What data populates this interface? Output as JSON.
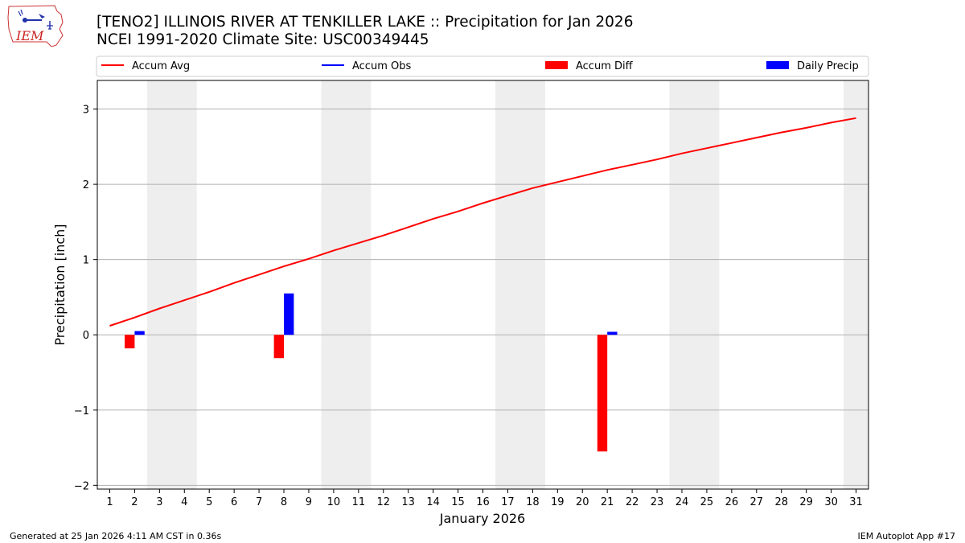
{
  "header": {
    "title_line1": "[TENO2] ILLINOIS RIVER  AT TENKILLER LAKE :: Precipitation for Jan 2026",
    "title_line2": "NCEI 1991-2020 Climate Site: USC00349445",
    "logo_text": "IEM"
  },
  "footer": {
    "generated": "Generated at 25 Jan 2026 4:11 AM CST in 0.36s",
    "app": "IEM Autoplot App #17"
  },
  "colors": {
    "accum_avg": "#ff0000",
    "accum_obs": "#0000ff",
    "accum_diff": "#ff0000",
    "daily_precip": "#0000ff",
    "weekend_shade": "#eeeeee",
    "grid": "#b0b0b0"
  },
  "chart_data": {
    "type": "bar",
    "title": "[TENO2] ILLINOIS RIVER  AT TENKILLER LAKE :: Precipitation for Jan 2026",
    "xlabel": "January 2026",
    "ylabel": "Precipitation [inch]",
    "xlim": [
      0.5,
      31.5
    ],
    "ylim": [
      -2.05,
      3.38
    ],
    "x_ticks": [
      1,
      2,
      3,
      4,
      5,
      6,
      7,
      8,
      9,
      10,
      11,
      12,
      13,
      14,
      15,
      16,
      17,
      18,
      19,
      20,
      21,
      22,
      23,
      24,
      25,
      26,
      27,
      28,
      29,
      30,
      31
    ],
    "y_ticks": [
      -2,
      -1,
      0,
      1,
      2,
      3
    ],
    "y_tick_labels": [
      "−2",
      "−1",
      "0",
      "1",
      "2",
      "3"
    ],
    "grid": "horizontal",
    "legend_position": "top",
    "legend": [
      {
        "label": "Accum Avg",
        "kind": "line",
        "color": "#ff0000"
      },
      {
        "label": "Accum Obs",
        "kind": "line",
        "color": "#0000ff"
      },
      {
        "label": "Accum Diff",
        "kind": "bar",
        "color": "#ff0000"
      },
      {
        "label": "Daily Precip",
        "kind": "bar",
        "color": "#0000ff"
      }
    ],
    "weekend_spans": [
      [
        2.5,
        4.5
      ],
      [
        9.5,
        11.5
      ],
      [
        16.5,
        18.5
      ],
      [
        23.5,
        25.5
      ],
      [
        30.5,
        31.5
      ]
    ],
    "series": [
      {
        "name": "Accum Avg",
        "type": "line",
        "color": "#ff0000",
        "x": [
          1,
          2,
          3,
          4,
          5,
          6,
          7,
          8,
          9,
          10,
          11,
          12,
          13,
          14,
          15,
          16,
          17,
          18,
          19,
          20,
          21,
          22,
          23,
          24,
          25,
          26,
          27,
          28,
          29,
          30,
          31
        ],
        "values": [
          0.12,
          0.23,
          0.35,
          0.46,
          0.57,
          0.69,
          0.8,
          0.91,
          1.01,
          1.12,
          1.22,
          1.32,
          1.43,
          1.54,
          1.64,
          1.75,
          1.85,
          1.95,
          2.03,
          2.11,
          2.19,
          2.26,
          2.33,
          2.41,
          2.48,
          2.55,
          2.62,
          2.69,
          2.75,
          2.82,
          2.88
        ]
      },
      {
        "name": "Accum Diff",
        "type": "bar",
        "color": "#ff0000",
        "offset": -0.2,
        "x": [
          2,
          8,
          21
        ],
        "values": [
          -0.18,
          -0.31,
          -1.55
        ]
      },
      {
        "name": "Daily Precip",
        "type": "bar",
        "color": "#0000ff",
        "offset": 0.2,
        "x": [
          2,
          8,
          21
        ],
        "values": [
          0.05,
          0.55,
          0.04
        ]
      }
    ]
  }
}
